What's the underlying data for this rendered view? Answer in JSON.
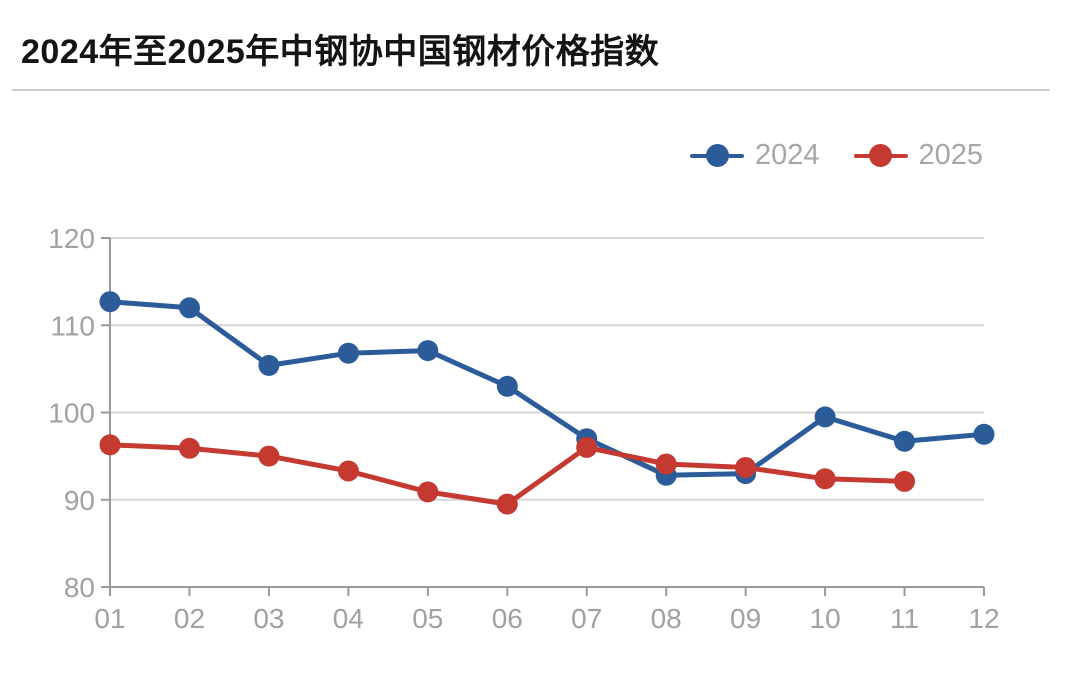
{
  "header": {
    "title": "2024年至2025年中钢协中国钢材价格指数"
  },
  "legend": {
    "items": [
      {
        "label": "2024",
        "color": "#2b5c99"
      },
      {
        "label": "2025",
        "color": "#c43a31"
      }
    ]
  },
  "chart_data": {
    "type": "line",
    "title": "2024年至2025年中钢协中国钢材价格指数",
    "categories": [
      "01",
      "02",
      "03",
      "04",
      "05",
      "06",
      "07",
      "08",
      "09",
      "10",
      "11",
      "12"
    ],
    "series": [
      {
        "name": "2024",
        "color": "#2b5c99",
        "values": [
          112.7,
          112.0,
          105.4,
          106.8,
          107.1,
          103.0,
          97.0,
          92.8,
          93.0,
          99.5,
          96.7,
          97.5
        ]
      },
      {
        "name": "2025",
        "color": "#c43a31",
        "values": [
          96.3,
          95.9,
          95.0,
          93.3,
          90.9,
          89.5,
          96.0,
          94.1,
          93.7,
          92.4,
          92.1
        ]
      }
    ],
    "xlabel": "",
    "ylabel": "",
    "ylim": [
      80,
      120
    ],
    "yticks": [
      80,
      90,
      100,
      110,
      120
    ],
    "grid": true,
    "legend_position": "top-right",
    "colors": {
      "axis": "#9a9a9a",
      "gridline": "#d5d5d5",
      "tick_label": "#a1a1a1",
      "title_text": "#141414",
      "divider": "#cccccc",
      "background": "#ffffff"
    }
  }
}
